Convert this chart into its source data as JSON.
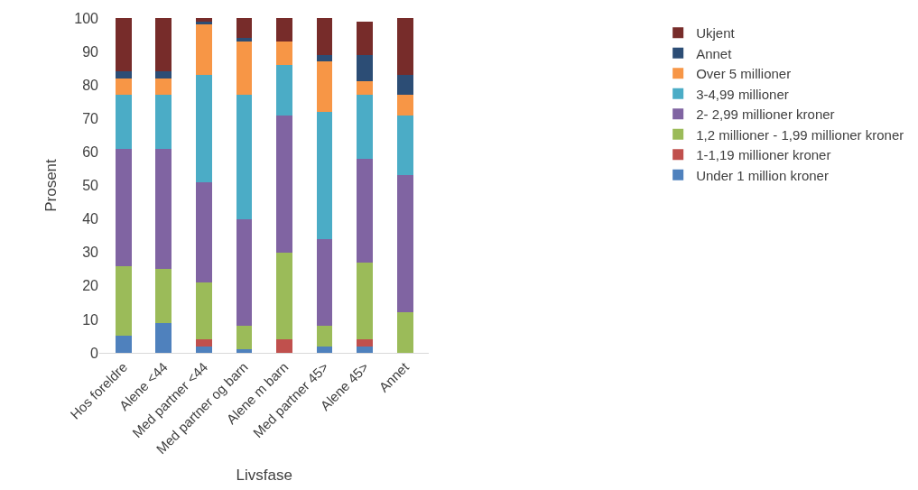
{
  "chart_data": {
    "type": "bar",
    "stacked": true,
    "xlabel": "Livsfase",
    "ylabel": "Prosent",
    "categories": [
      "Hos foreldre",
      "Alene <44",
      "Med partner <44",
      "Med partner og barn",
      "Alene m barn",
      "Med partner 45>",
      "Alene 45>",
      "Annet"
    ],
    "series": [
      {
        "name": "Under 1 million kroner",
        "color": "#4f81bd",
        "values": [
          5,
          9,
          2,
          1,
          0,
          2,
          2,
          0
        ]
      },
      {
        "name": "1-1,19 millioner kroner",
        "color": "#c0504d",
        "values": [
          0,
          0,
          2,
          0,
          4,
          0,
          2,
          0
        ]
      },
      {
        "name": "1,2 millioner - 1,99 millioner kroner",
        "color": "#9bbb59",
        "values": [
          21,
          16,
          17,
          7,
          26,
          6,
          23,
          12
        ]
      },
      {
        "name": "2- 2,99 millioner kroner",
        "color": "#8064a2",
        "values": [
          35,
          36,
          30,
          32,
          41,
          26,
          31,
          41
        ]
      },
      {
        "name": "3-4,99 millioner",
        "color": "#4bacc6",
        "values": [
          16,
          16,
          32,
          37,
          15,
          38,
          19,
          18
        ]
      },
      {
        "name": "Over 5 millioner",
        "color": "#f79646",
        "values": [
          5,
          5,
          15,
          16,
          7,
          15,
          4,
          6
        ]
      },
      {
        "name": "Annet",
        "color": "#2c4d75",
        "values": [
          2,
          2,
          1,
          1,
          0,
          2,
          8,
          6
        ]
      },
      {
        "name": "Ukjent",
        "color": "#772c2a",
        "values": [
          16,
          16,
          1,
          6,
          7,
          11,
          10,
          17
        ]
      }
    ],
    "ylim": [
      0,
      100
    ],
    "yticks": [
      0,
      10,
      20,
      30,
      40,
      50,
      60,
      70,
      80,
      90,
      100
    ],
    "grid": false,
    "legend": "right"
  }
}
